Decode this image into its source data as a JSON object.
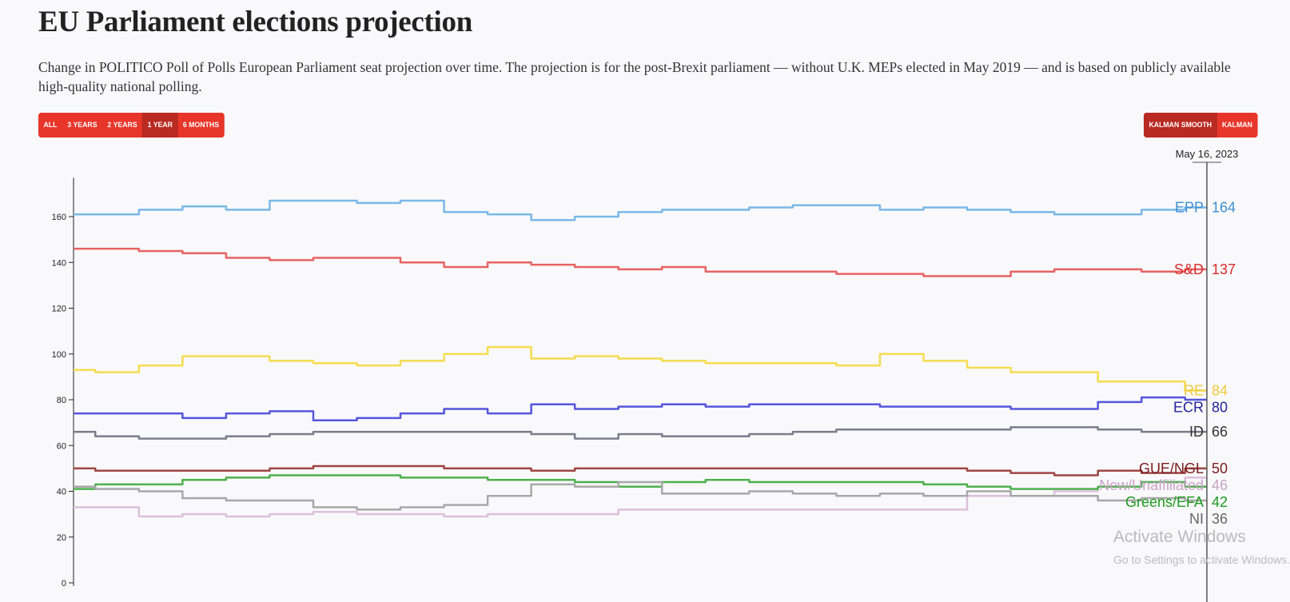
{
  "title": "EU Parliament elections projection",
  "subtitle": "Change in POLITICO Poll of Polls European Parliament seat projection over time. The projection is for the post-Brexit parliament — without U.K. MEPs elected in May 2019 — and is based on publicly available high-quality national polling.",
  "range_buttons": [
    {
      "label": "ALL"
    },
    {
      "label": "3 YEARS"
    },
    {
      "label": "2 YEARS"
    },
    {
      "label": "1 YEAR",
      "active": true
    },
    {
      "label": "6 MONTHS"
    }
  ],
  "mode_buttons": [
    {
      "label": "KALMAN SMOOTH",
      "active": true
    },
    {
      "label": "KALMAN"
    }
  ],
  "accent_color": "#e8352a",
  "watermark": {
    "line1": "Activate Windows",
    "line2": "Go to Settings to activate Windows."
  },
  "chart_data": {
    "type": "line",
    "title": "",
    "xlabel": "",
    "ylabel": "",
    "ylim": [
      0,
      177
    ],
    "yticks": [
      0,
      20,
      40,
      60,
      80,
      100,
      120,
      140,
      160
    ],
    "x_range": "1 year",
    "cursor_date": "May 16, 2023",
    "grid": false,
    "series": [
      {
        "name": "EPP",
        "last": 164,
        "color": "#7ab8e8",
        "label_color": "#3d8fd1",
        "values": [
          161,
          161,
          163,
          164.5,
          163,
          167,
          167,
          166,
          167,
          162,
          161,
          158.5,
          160,
          162,
          163,
          163,
          164,
          165,
          165,
          163,
          164,
          163,
          162,
          161,
          161,
          163,
          164
        ]
      },
      {
        "name": "S&D",
        "last": 137,
        "color": "#e86262",
        "label_color": "#d92b2b",
        "values": [
          146,
          146,
          145,
          144,
          142,
          141,
          142,
          142,
          140,
          138,
          140,
          139,
          138,
          137,
          138,
          136,
          136,
          136,
          135,
          135,
          134,
          134,
          136,
          137,
          137,
          136,
          137
        ]
      },
      {
        "name": "RE",
        "last": 84,
        "color": "#f5dc50",
        "label_color": "#f0c93a",
        "values": [
          93,
          92,
          95,
          99,
          99,
          97,
          96,
          95,
          97,
          100,
          103,
          98,
          99,
          98,
          97,
          96,
          96,
          96,
          95,
          100,
          97,
          94,
          92,
          92,
          88,
          88,
          84
        ]
      },
      {
        "name": "ECR",
        "last": 80,
        "color": "#5555dd",
        "label_color": "#22229c",
        "values": [
          74,
          74,
          74,
          72,
          74,
          75,
          71,
          72,
          74,
          76,
          74,
          78,
          76,
          77,
          78,
          77,
          78,
          78,
          78,
          77,
          77,
          77,
          76,
          76,
          79,
          81,
          80
        ]
      },
      {
        "name": "ID",
        "last": 66,
        "color": "#7c7c8c",
        "label_color": "#333333",
        "values": [
          66,
          64,
          63,
          63,
          64,
          65,
          66,
          66,
          66,
          66,
          66,
          65,
          63,
          65,
          64,
          64,
          65,
          66,
          67,
          67,
          67,
          67,
          68,
          68,
          67,
          66,
          66
        ]
      },
      {
        "name": "GUE/NGL",
        "last": 50,
        "color": "#a04545",
        "label_color": "#7a1c1c",
        "values": [
          50,
          49,
          49,
          49,
          49,
          50,
          51,
          51,
          51,
          50,
          50,
          49,
          50,
          50,
          50,
          50,
          50,
          50,
          50,
          50,
          50,
          49,
          48,
          47,
          49,
          48,
          50
        ]
      },
      {
        "name": "New/Unaffiliated",
        "last": 46,
        "color": "#ddbfdb",
        "label_color": "#c9a3c6",
        "values": [
          33,
          33,
          29,
          30,
          29,
          30,
          31,
          30,
          30,
          29,
          30,
          30,
          30,
          32,
          32,
          32,
          32,
          32,
          32,
          32,
          32,
          38,
          38,
          40,
          42,
          44,
          46
        ]
      },
      {
        "name": "Greens/EFA",
        "last": 42,
        "color": "#4db04d",
        "label_color": "#1f9a1f",
        "values": [
          41,
          43,
          43,
          45,
          46,
          47,
          47,
          47,
          46,
          46,
          45,
          45,
          44,
          42,
          44,
          45,
          44,
          44,
          44,
          44,
          43,
          42,
          41,
          41,
          42,
          44,
          42
        ]
      },
      {
        "name": "NI",
        "last": 36,
        "color": "#a8a8a8",
        "label_color": "#666666",
        "values": [
          42,
          41,
          40,
          37,
          36,
          36,
          33,
          32,
          33,
          34,
          38,
          43,
          42,
          44,
          39,
          39,
          40,
          39,
          38,
          39,
          38,
          40,
          38,
          38,
          36,
          37,
          36
        ]
      }
    ]
  }
}
